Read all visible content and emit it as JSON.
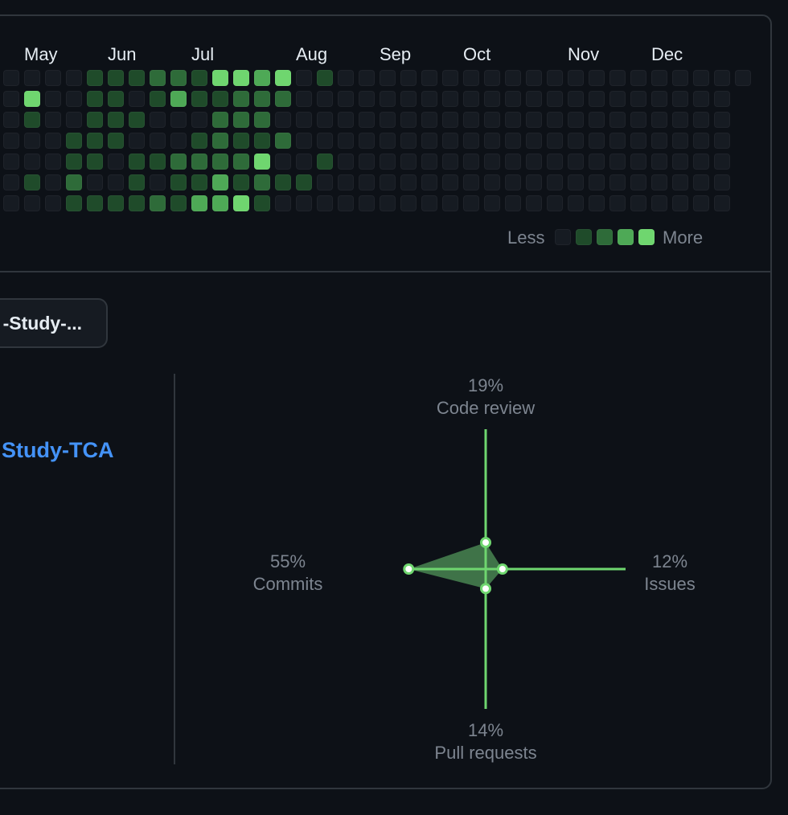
{
  "calendar": {
    "months": [
      "May",
      "Jun",
      "Jul",
      "Aug",
      "Sep",
      "Oct",
      "Nov",
      "Dec"
    ],
    "weeks": [
      [
        0,
        0,
        0,
        0,
        0,
        0,
        0
      ],
      [
        0,
        4,
        1,
        0,
        0,
        1,
        0
      ],
      [
        0,
        0,
        0,
        0,
        0,
        0,
        0
      ],
      [
        0,
        0,
        0,
        1,
        1,
        2,
        1
      ],
      [
        1,
        1,
        1,
        1,
        1,
        0,
        1
      ],
      [
        1,
        1,
        1,
        1,
        0,
        0,
        1
      ],
      [
        1,
        0,
        1,
        0,
        1,
        1,
        1
      ],
      [
        2,
        1,
        0,
        0,
        1,
        0,
        2
      ],
      [
        2,
        3,
        0,
        0,
        2,
        1,
        1
      ],
      [
        1,
        1,
        0,
        1,
        2,
        1,
        3
      ],
      [
        4,
        1,
        2,
        2,
        2,
        3,
        3
      ],
      [
        4,
        2,
        2,
        1,
        2,
        1,
        4
      ],
      [
        3,
        2,
        2,
        1,
        4,
        2,
        1
      ],
      [
        4,
        2,
        0,
        2,
        0,
        1,
        0
      ],
      [
        0,
        0,
        0,
        0,
        0,
        1,
        0
      ],
      [
        1,
        0,
        0,
        0,
        1,
        0,
        0
      ],
      [
        0,
        0,
        0,
        0,
        0,
        0,
        0
      ],
      [
        0,
        0,
        0,
        0,
        0,
        0,
        0
      ],
      [
        0,
        0,
        0,
        0,
        0,
        0,
        0
      ],
      [
        0,
        0,
        0,
        0,
        0,
        0,
        0
      ],
      [
        0,
        0,
        0,
        0,
        0,
        0,
        0
      ],
      [
        0,
        0,
        0,
        0,
        0,
        0,
        0
      ],
      [
        0,
        0,
        0,
        0,
        0,
        0,
        0
      ],
      [
        0,
        0,
        0,
        0,
        0,
        0,
        0
      ],
      [
        0,
        0,
        0,
        0,
        0,
        0,
        0
      ],
      [
        0,
        0,
        0,
        0,
        0,
        0,
        0
      ],
      [
        0,
        0,
        0,
        0,
        0,
        0,
        0
      ],
      [
        0,
        0,
        0,
        0,
        0,
        0,
        0
      ],
      [
        0,
        0,
        0,
        0,
        0,
        0,
        0
      ],
      [
        0,
        0,
        0,
        0,
        0,
        0,
        0
      ],
      [
        0,
        0,
        0,
        0,
        0,
        0,
        0
      ],
      [
        0,
        0,
        0,
        0,
        0,
        0,
        0
      ],
      [
        0,
        0,
        0,
        0,
        0,
        0,
        0
      ],
      [
        0,
        0,
        0,
        0,
        0,
        0,
        0
      ],
      [
        0,
        0,
        0,
        0,
        0,
        0,
        0
      ],
      [
        0
      ]
    ],
    "level_colors": [
      "#161b22",
      "#1f4b2a",
      "#2e6b39",
      "#4ea956",
      "#6fd66f"
    ],
    "legend": {
      "less": "Less",
      "more": "More"
    }
  },
  "repo_selector": {
    "label": "-Study-..."
  },
  "repo": {
    "name": "Study-TCA"
  },
  "activity": {
    "accent_color": "#6fd66f",
    "fill_color": "#3f7348",
    "code_review": {
      "percent": "19%",
      "label": "Code review",
      "value": 19
    },
    "issues": {
      "percent": "12%",
      "label": "Issues",
      "value": 12
    },
    "pull_requests": {
      "percent": "14%",
      "label": "Pull requests",
      "value": 14
    },
    "commits": {
      "percent": "55%",
      "label": "Commits",
      "value": 55
    }
  }
}
